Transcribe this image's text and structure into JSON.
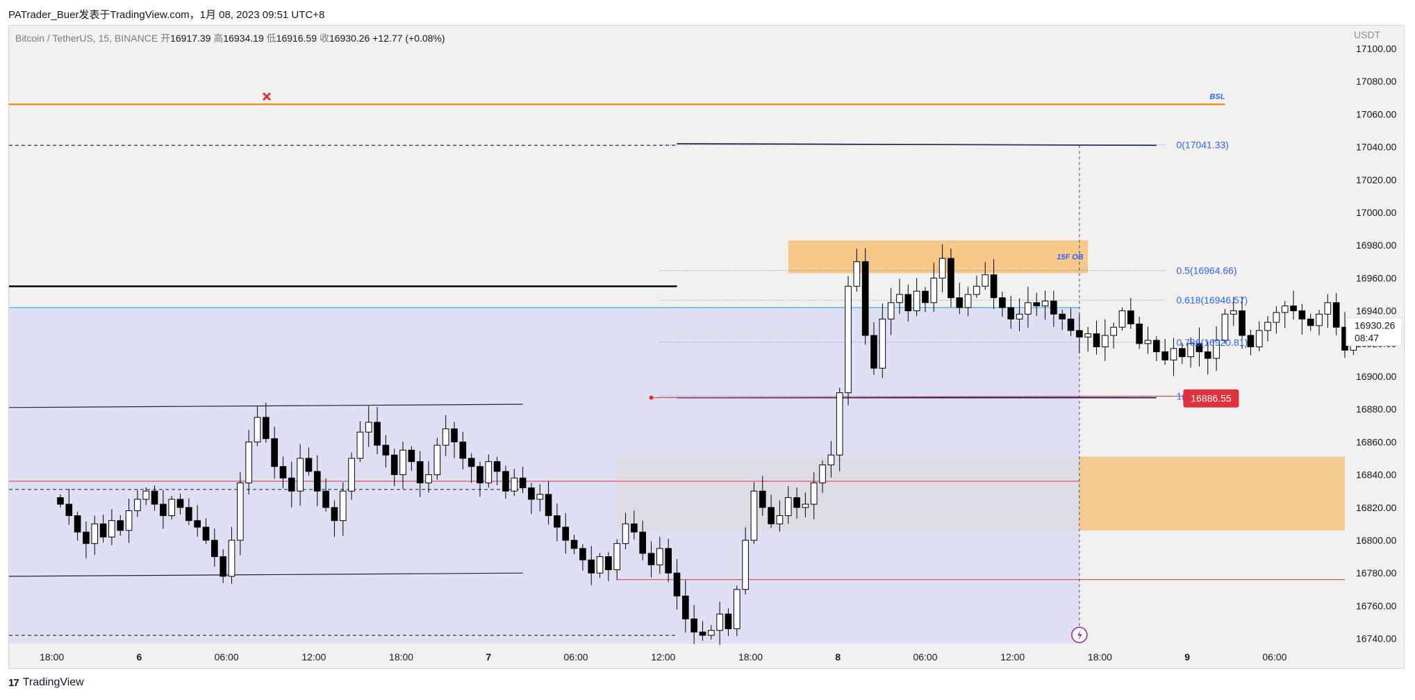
{
  "header": {
    "title": "PATrader_Buer发表于TradingView.com，1月 08, 2023 09:51 UTC+8"
  },
  "legend": {
    "symbol": "Bitcoin / TetherUS, 15, BINANCE",
    "open_label": "开",
    "open": "16917.39",
    "high_label": "高",
    "high": "16934.19",
    "low_label": "低",
    "low": "16916.59",
    "close_label": "收",
    "close": "16930.26",
    "change": "+12.77 (+0.08%)"
  },
  "footer": {
    "brand": "TradingView",
    "logo_text": "17"
  },
  "colors": {
    "up": "#ffffff",
    "down": "#000000",
    "zone": "#f6c37e",
    "range": "#d9def3",
    "bsl": "#f7931a",
    "accent": "#2962ff",
    "red": "#e0303e"
  },
  "chart_data": {
    "type": "candlestick",
    "symbol": "Bitcoin / TetherUS",
    "interval": "15",
    "exchange": "BINANCE",
    "currency_label": "USDT",
    "y_ticks": [
      17100,
      17080,
      17060,
      17040,
      17020,
      17000,
      16980,
      16960,
      16940,
      16920,
      16900,
      16880,
      16860,
      16840,
      16820,
      16800,
      16780,
      16760,
      16740
    ],
    "ylim": [
      16736,
      17114
    ],
    "x_ticks": [
      "18:00",
      "6",
      "06:00",
      "12:00",
      "18:00",
      "7",
      "06:00",
      "12:00",
      "18:00",
      "8",
      "06:00",
      "12:00",
      "18:00",
      "9",
      "06:00"
    ],
    "xlim": [
      -6,
      150
    ],
    "last_price": {
      "value": "16930.26",
      "countdown": "08:47"
    },
    "red_tag": {
      "value": "16886.55"
    },
    "labels": {
      "bsl": "BSL",
      "ob": "15F OB"
    },
    "fib_levels": [
      {
        "label": "0(17041.33)",
        "value": 17041.33
      },
      {
        "label": "0.5(16964.66)",
        "value": 16964.66
      },
      {
        "label": "0.618(16946.57)",
        "value": 16946.57
      },
      {
        "label": "0.786(16920.81)",
        "value": 16920.81
      },
      {
        "label": "1(16888.00)",
        "value": 16888.0
      }
    ],
    "closes": [
      16822,
      16815,
      16805,
      16798,
      16810,
      16802,
      16812,
      16806,
      16818,
      16825,
      16830,
      16822,
      16815,
      16825,
      16820,
      16812,
      16808,
      16800,
      16790,
      16778,
      16800,
      16835,
      16860,
      16875,
      16862,
      16845,
      16838,
      16830,
      16850,
      16842,
      16830,
      16820,
      16812,
      16830,
      16850,
      16866,
      16872,
      16858,
      16852,
      16840,
      16855,
      16848,
      16835,
      16840,
      16858,
      16868,
      16860,
      16850,
      16845,
      16835,
      16848,
      16842,
      16830,
      16838,
      16832,
      16825,
      16828,
      16815,
      16808,
      16800,
      16795,
      16788,
      16780,
      16790,
      16782,
      16798,
      16810,
      16805,
      16792,
      16785,
      16795,
      16780,
      16766,
      16752,
      16744,
      16742,
      16745,
      16755,
      16746,
      16770,
      16800,
      16830,
      16820,
      16810,
      16815,
      16826,
      16820,
      16822,
      16835,
      16846,
      16852,
      16890,
      16955,
      16970,
      16925,
      16905,
      16935,
      16945,
      16950,
      16940,
      16952,
      16945,
      16960,
      16972,
      16948,
      16942,
      16950,
      16955,
      16962,
      16948,
      16942,
      16935,
      16938,
      16945,
      16943,
      16946,
      16938,
      16935,
      16928,
      16924,
      16926,
      16918,
      16925,
      16930,
      16940,
      16932,
      16920,
      16922,
      16915,
      16910,
      16917,
      16912,
      16920,
      16915,
      16911,
      16922,
      16938,
      16940,
      16925,
      16918,
      16928,
      16933,
      16939,
      16943,
      16940,
      16935,
      16931,
      16938,
      16945,
      16930,
      16916,
      16930
    ],
    "annotations": [
      {
        "kind": "bsl_line",
        "price": 17066,
        "from": -6,
        "to": 136
      },
      {
        "kind": "ob_zone",
        "top": 16983,
        "bottom": 16963,
        "from": 85,
        "to": 120
      },
      {
        "kind": "demand_zone",
        "top": 16851,
        "bottom": 16806,
        "from": 65,
        "to": 150
      },
      {
        "kind": "range_box",
        "top": 16942,
        "bottom": 16737,
        "from": -6,
        "to": 119
      },
      {
        "kind": "range_box_upper",
        "top": 16942,
        "bottom": 16737,
        "from": -6,
        "to": 76
      }
    ]
  }
}
